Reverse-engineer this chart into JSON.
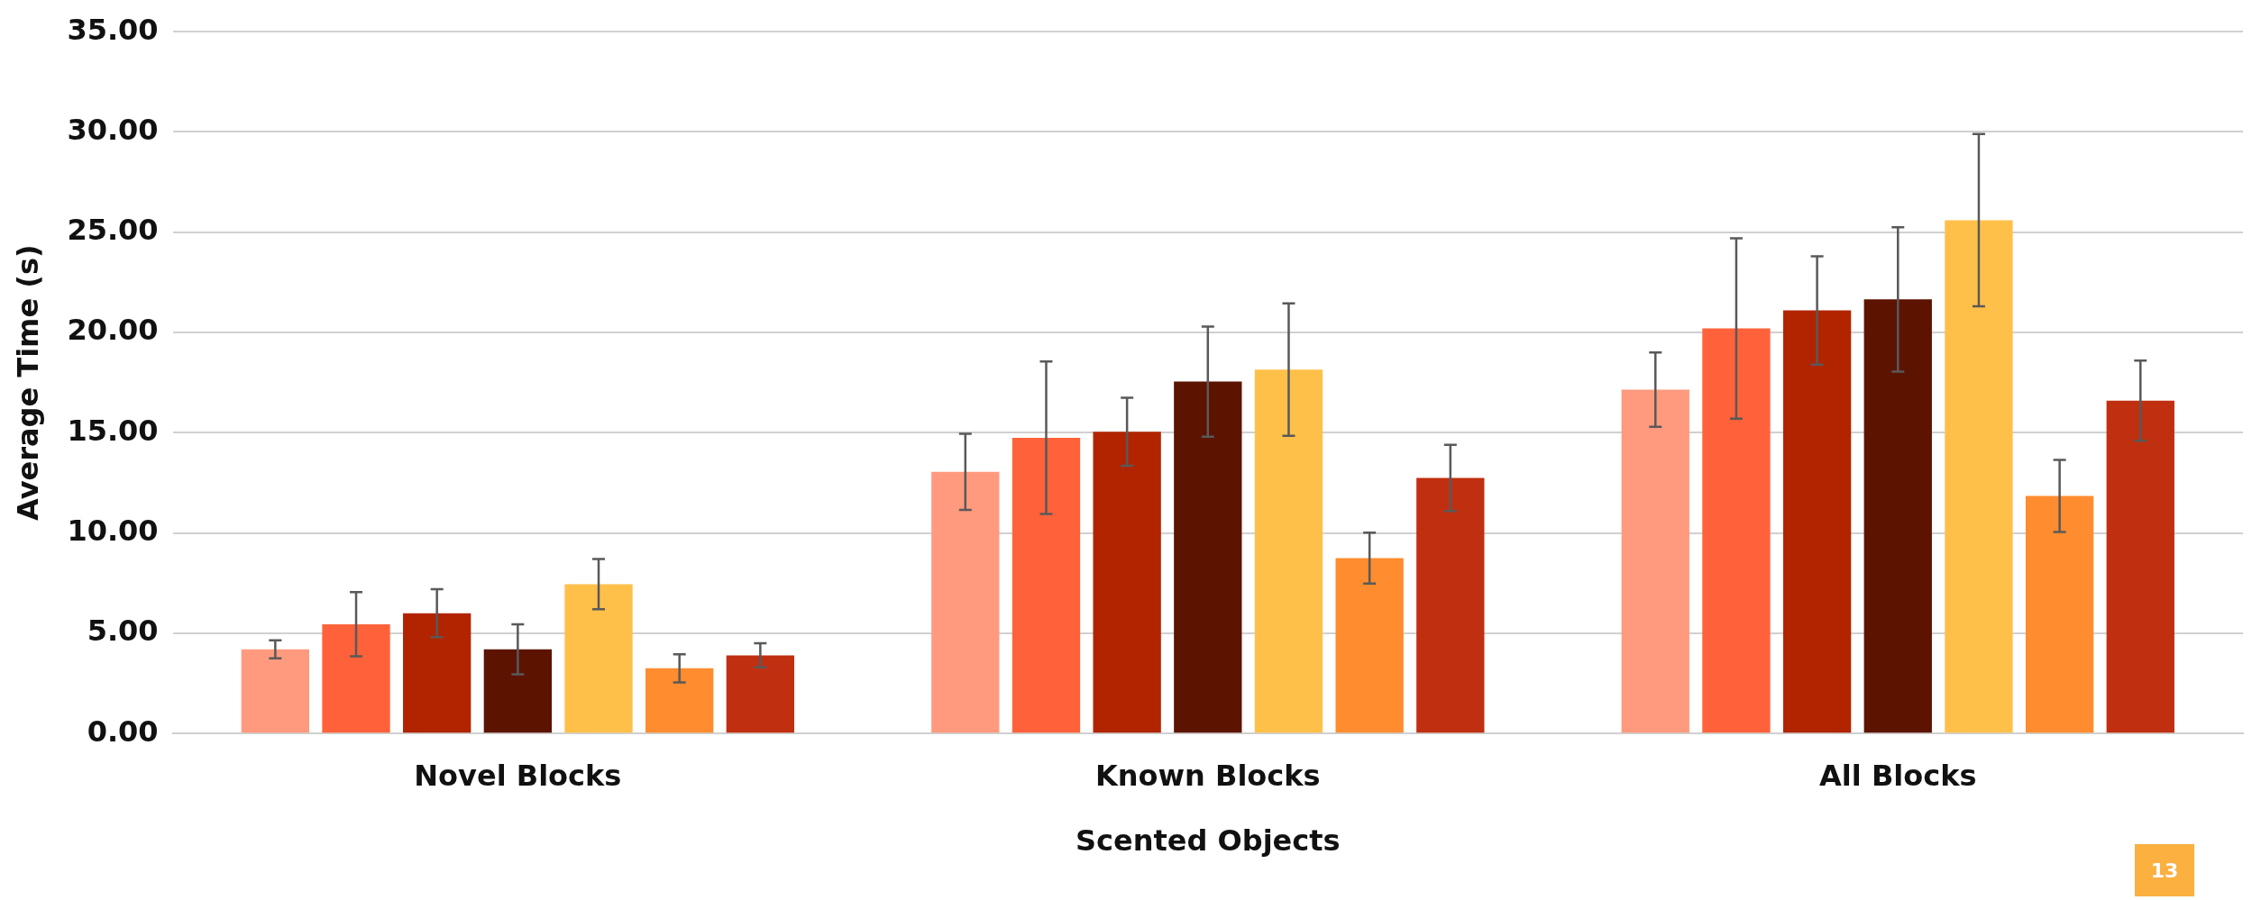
{
  "chart_data": {
    "type": "bar",
    "xlabel": "Scented Objects",
    "ylabel": "Average Time (s)",
    "categories": [
      "Novel Blocks",
      "Known Blocks",
      "All Blocks"
    ],
    "series": [
      {
        "color": "#ff9a7e",
        "values": [
          4.2,
          13.05,
          17.15
        ],
        "errors": [
          0.45,
          1.9,
          1.85
        ]
      },
      {
        "color": "#ff623a",
        "values": [
          5.45,
          14.75,
          20.2
        ],
        "errors": [
          1.6,
          3.8,
          4.5
        ]
      },
      {
        "color": "#b22400",
        "values": [
          6.0,
          15.05,
          21.1
        ],
        "errors": [
          1.2,
          1.7,
          2.7
        ]
      },
      {
        "color": "#5c1300",
        "values": [
          4.2,
          17.55,
          21.65
        ],
        "errors": [
          1.25,
          2.75,
          3.6
        ]
      },
      {
        "color": "#ffc04a",
        "values": [
          7.45,
          18.15,
          25.6
        ],
        "errors": [
          1.25,
          3.3,
          4.3
        ]
      },
      {
        "color": "#ff8c2e",
        "values": [
          3.25,
          8.75,
          11.85
        ],
        "errors": [
          0.7,
          1.27,
          1.8
        ]
      },
      {
        "color": "#c03010",
        "values": [
          3.9,
          12.75,
          16.6
        ],
        "errors": [
          0.6,
          1.65,
          2.0
        ]
      }
    ],
    "ylim": [
      0,
      35
    ],
    "yticks": [
      {
        "value": 0,
        "label": "0.00"
      },
      {
        "value": 5,
        "label": "5.00"
      },
      {
        "value": 10,
        "label": "10.00"
      },
      {
        "value": 15,
        "label": "15.00"
      },
      {
        "value": 20,
        "label": "20.00"
      },
      {
        "value": 25,
        "label": "25.00"
      },
      {
        "value": 30,
        "label": "30.00"
      },
      {
        "value": 35,
        "label": "35.00"
      }
    ],
    "grid": "y",
    "legend": false,
    "annotations": [
      "13"
    ]
  }
}
